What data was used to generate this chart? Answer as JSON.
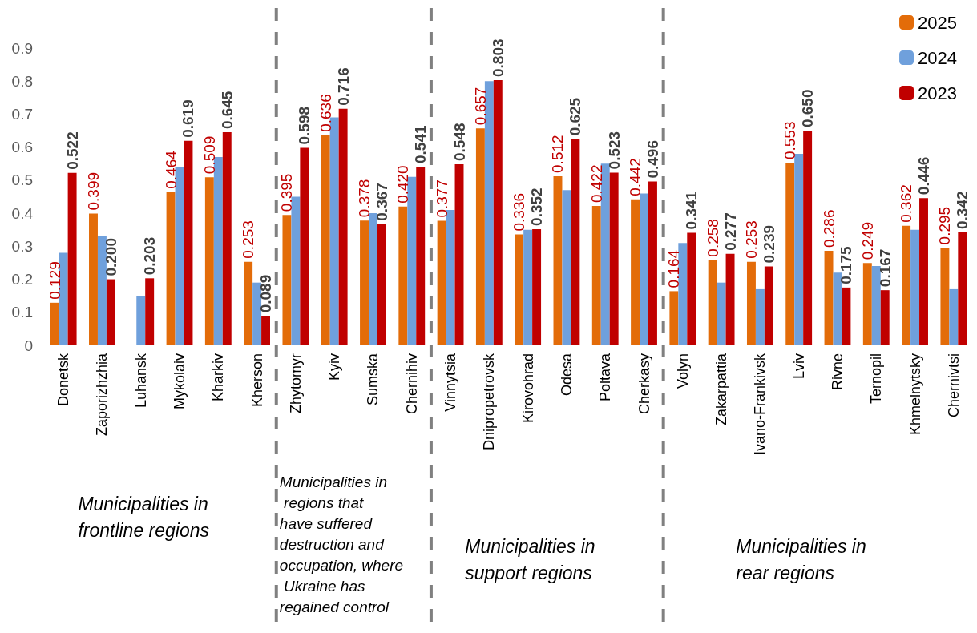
{
  "chart_data": {
    "type": "bar",
    "categories": [
      "Donetsk",
      "Zaporizhzhia",
      "Luhansk",
      "Mykolaiv",
      "Kharkiv",
      "Kherson",
      "Zhytomyr",
      "Kyiv",
      "Sumska",
      "Chernihiv",
      "Vinnytsia",
      "Dnipropetrovsk",
      "Kirovohrad",
      "Odesa",
      "Poltava",
      "Cherkasy",
      "Volyn",
      "Zakarpattia",
      "Ivano-Frankivsk",
      "Lviv",
      "Rivne",
      "Ternopil",
      "Khmelnytsky",
      "Chernivtsi"
    ],
    "series": [
      {
        "name": "2025",
        "color": "#e36c09",
        "values": [
          0.129,
          0.399,
          null,
          0.464,
          0.509,
          0.253,
          0.395,
          0.636,
          0.378,
          0.42,
          0.377,
          0.657,
          0.336,
          0.512,
          0.422,
          0.442,
          0.164,
          0.258,
          0.253,
          0.553,
          0.286,
          0.249,
          0.362,
          0.295
        ],
        "value_labels": [
          "0.129",
          "0.399",
          null,
          "0.464",
          "0.509",
          "0.253",
          "0.395",
          "0.636",
          "0.378",
          "0.420",
          "0.377",
          "0.657",
          "0.336",
          "0.512",
          "0.422",
          "0.442",
          "0.164",
          "0.258",
          "0.253",
          "0.553",
          "0.286",
          "0.249",
          "0.362",
          "0.295"
        ]
      },
      {
        "name": "2024",
        "color": "#6fa0dc",
        "values": [
          0.28,
          0.33,
          0.15,
          0.54,
          0.57,
          0.19,
          0.45,
          0.69,
          0.4,
          0.51,
          0.41,
          0.8,
          0.35,
          0.47,
          0.55,
          0.46,
          0.31,
          0.19,
          0.17,
          0.58,
          0.22,
          0.24,
          0.35,
          0.17
        ]
      },
      {
        "name": "2023",
        "color": "#c00000",
        "values": [
          0.522,
          0.2,
          0.203,
          0.619,
          0.645,
          0.089,
          0.598,
          0.716,
          0.367,
          0.541,
          0.548,
          0.803,
          0.352,
          0.625,
          0.523,
          0.496,
          0.341,
          0.277,
          0.239,
          0.65,
          0.175,
          0.167,
          0.446,
          0.342
        ],
        "value_labels": [
          "0.522",
          "0.200",
          "0.203",
          "0.619",
          "0.645",
          "0.089",
          "0.598",
          "0.716",
          "0.367",
          "0.541",
          "0.548",
          "0.803",
          "0.352",
          "0.625",
          "0.523",
          "0.496",
          "0.341",
          "0.277",
          "0.239",
          "0.650",
          "0.175",
          "0.167",
          "0.446",
          "0.342"
        ]
      }
    ],
    "ylim": [
      0,
      0.9
    ],
    "yticks": [
      0,
      0.1,
      0.2,
      0.3,
      0.4,
      0.5,
      0.6,
      0.7,
      0.8,
      0.9
    ],
    "grid": false,
    "legend": "top right",
    "annotations": [
      "Municipalities in frontline regions",
      "Municipalities in regions that have suffered destruction and occupation, where Ukraine has regained control",
      "Municipalities in support regions",
      "Municipalities in rear regions"
    ]
  }
}
